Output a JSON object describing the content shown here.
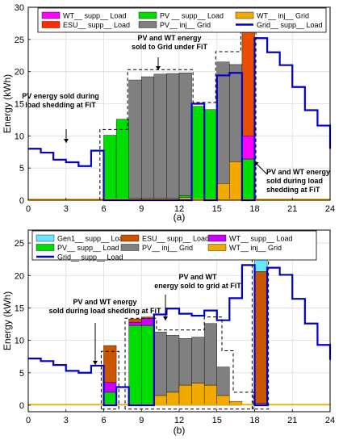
{
  "chart_data": [
    {
      "type": "bar",
      "caption": "(a)",
      "ylabel": "Energy (kWh)",
      "xlim": [
        0,
        24
      ],
      "ylim": [
        0,
        30
      ],
      "xticks": [
        0,
        3,
        6,
        9,
        12,
        15,
        18,
        21,
        24
      ],
      "yticks": [
        0,
        5,
        10,
        15,
        20,
        25,
        30
      ],
      "grid": true,
      "legend_position": "top",
      "legend": [
        {
          "label": "WT__ supp__ Load",
          "color": "#ff00ff",
          "style": "patch"
        },
        {
          "label": "PV __ supp__ Load",
          "color": "#00dd00",
          "style": "patch"
        },
        {
          "label": "WT__ inj__ Grid",
          "color": "#f2a900",
          "style": "patch"
        },
        {
          "label": "ESU__ supp__ Load",
          "color": "#ff2a00",
          "style": "patch"
        },
        {
          "label": "PV__ inj__ Grid",
          "color": "#808080",
          "style": "patch"
        },
        {
          "label": "Grid__ supp__ Load",
          "color": "#0000cc",
          "style": "line"
        }
      ],
      "bars": [
        {
          "hour": 6,
          "pv_supp_load": 10.1
        },
        {
          "hour": 7,
          "pv_supp_load": 12.6
        },
        {
          "hour": 8,
          "pv_supp_load": 0.3,
          "pv_inj_grid": 18.4
        },
        {
          "hour": 9,
          "pv_supp_load": 0.3,
          "pv_inj_grid": 18.9
        },
        {
          "hour": 10,
          "pv_supp_load": 0.3,
          "pv_inj_grid": 19.3
        },
        {
          "hour": 11,
          "pv_supp_load": 0.3,
          "pv_inj_grid": 19.4
        },
        {
          "hour": 12,
          "pv_supp_load": 0.3,
          "wt_inj_grid": 0.4,
          "pv_inj_grid": 19.1
        },
        {
          "hour": 13,
          "pv_supp_load": 14.6
        },
        {
          "hour": 14,
          "pv_supp_load": 14.1
        },
        {
          "hour": 15,
          "wt_inj_grid": 2.6,
          "pv_inj_grid": 18.9
        },
        {
          "hour": 16,
          "wt_inj_grid": 6.0,
          "pv_inj_grid": 15.1
        },
        {
          "hour": 17,
          "pv_supp_load": 6.4,
          "wt_supp_load": 3.6,
          "esu_supp_load": 16.6
        }
      ],
      "grid_supp_load": {
        "hours": [
          0,
          1,
          2,
          3,
          4,
          5,
          6,
          7,
          8,
          9,
          10,
          11,
          12,
          13,
          14,
          15,
          16,
          17,
          18,
          19,
          20,
          21,
          22,
          23,
          24
        ],
        "values": [
          8.0,
          7.4,
          6.3,
          5.9,
          5.3,
          7.7,
          0,
          0,
          0,
          0,
          0,
          0,
          0,
          15.0,
          0,
          19.4,
          19.8,
          0,
          25.2,
          23.0,
          21.0,
          17.6,
          14.0,
          11.6,
          8.0
        ]
      },
      "annotations": [
        {
          "text": [
            "PV energy sold during",
            "load shedding at FiT"
          ],
          "points_to_hour": 6
        },
        {
          "text": [
            "PV and WT energy",
            "sold to Grid under FiT"
          ],
          "points_to_hour": 12
        },
        {
          "text": [
            "PV and WT energy",
            "sold during load",
            "shedding at FiT"
          ],
          "points_to_hour": 18
        }
      ]
    },
    {
      "type": "bar",
      "caption": "(b)",
      "ylabel": "Energy (kWh)",
      "xlim": [
        0,
        24
      ],
      "ylim": [
        -1,
        27
      ],
      "xticks": [
        0,
        3,
        6,
        9,
        12,
        15,
        18,
        21,
        24
      ],
      "yticks": [
        0,
        5,
        10,
        15,
        20,
        25
      ],
      "grid": true,
      "legend_position": "top",
      "legend": [
        {
          "label": "Gen1__ supp__ Load",
          "color": "#66e6ff",
          "style": "patch"
        },
        {
          "label": "ESU__ supp__ Load",
          "color": "#cc5500",
          "style": "patch"
        },
        {
          "label": "WT__ supp__ Load",
          "color": "#cc00ff",
          "style": "patch"
        },
        {
          "label": "PV__ supp__ Load",
          "color": "#00dd00",
          "style": "patch"
        },
        {
          "label": "PV__ inj__ Grid",
          "color": "#808080",
          "style": "patch"
        },
        {
          "label": "WT__ inj__ Grid",
          "color": "#f2a900",
          "style": "patch"
        },
        {
          "label": "Grid__ supp__ Load",
          "color": "#0000cc",
          "style": "line"
        }
      ],
      "bars": [
        {
          "hour": 6,
          "pv_supp_load": 2.0,
          "wt_supp_load": 1.5,
          "esu_supp_load": 5.7
        },
        {
          "hour": 8,
          "pv_supp_load": 12.3,
          "wt_supp_load": 0.5,
          "esu_supp_load": 0.5
        },
        {
          "hour": 9,
          "pv_supp_load": 12.3,
          "wt_supp_load": 1.1,
          "esu_supp_load": 0.2
        },
        {
          "hour": 10,
          "wt_inj_grid": 1.5,
          "pv_inj_grid": 9.8
        },
        {
          "hour": 11,
          "wt_inj_grid": 2.0,
          "pv_inj_grid": 8.8
        },
        {
          "hour": 12,
          "wt_inj_grid": 3.1,
          "pv_inj_grid": 7.2
        },
        {
          "hour": 13,
          "wt_inj_grid": 3.4,
          "pv_inj_grid": 7.1
        },
        {
          "hour": 14,
          "wt_inj_grid": 3.1,
          "pv_inj_grid": 9.5
        },
        {
          "hour": 15,
          "wt_inj_grid": 1.5,
          "pv_inj_grid": 4.4
        },
        {
          "hour": 16,
          "wt_inj_grid": 0.6
        },
        {
          "hour": 18,
          "esu_supp_load": 20.3,
          "wt_supp_load": 0.3,
          "gen1_supp_load": 2.3
        }
      ],
      "grid_supp_load": {
        "hours": [
          0,
          1,
          2,
          3,
          4,
          5,
          6,
          7,
          8,
          9,
          10,
          11,
          12,
          13,
          14,
          15,
          16,
          17,
          18,
          19,
          20,
          21,
          22,
          23,
          24
        ],
        "values": [
          7.2,
          6.8,
          6.2,
          5.3,
          5.0,
          6.1,
          0,
          2.8,
          0,
          0,
          14.0,
          14.9,
          14.1,
          13.8,
          14.6,
          13.1,
          16.5,
          21.6,
          0,
          21.2,
          20.1,
          16.4,
          12.6,
          9.3,
          7.0
        ]
      },
      "wt_inj_grid_baseline": 0.1,
      "annotations": [
        {
          "text": [
            "PV and WT energy",
            "sold during load shedding at FiT"
          ],
          "points_to_hour": 6
        },
        {
          "text": [
            "PV and WT",
            "energy sold to grid at FiT"
          ],
          "points_to_hour": 12
        }
      ]
    }
  ]
}
